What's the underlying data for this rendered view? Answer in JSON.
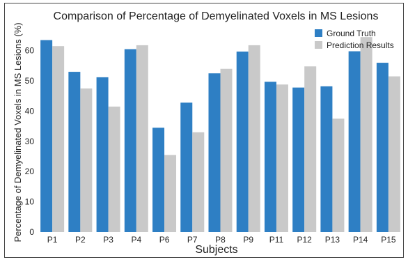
{
  "chart_data": {
    "type": "bar",
    "title": "Comparison of Percentage of Demyelinated Voxels in MS Lesions",
    "xlabel": "Subjects",
    "ylabel": "Percentage of Demyelinated Voxels in MS Lesions (%)",
    "categories": [
      "P1",
      "P2",
      "P3",
      "P4",
      "P6",
      "P7",
      "P8",
      "P9",
      "P11",
      "P12",
      "P13",
      "P14",
      "P15"
    ],
    "series": [
      {
        "name": "Ground Truth",
        "color": "#2e7fc4",
        "values": [
          63.5,
          53.0,
          51.2,
          60.5,
          34.5,
          42.8,
          52.5,
          59.7,
          49.7,
          47.8,
          48.2,
          59.8,
          56.0
        ]
      },
      {
        "name": "Prediction Results",
        "color": "#c9c9c9",
        "values": [
          61.5,
          47.5,
          41.5,
          61.8,
          25.5,
          33.0,
          54.0,
          61.8,
          48.8,
          54.8,
          37.5,
          64.5,
          51.5
        ]
      }
    ],
    "ylim": [
      0,
      68
    ],
    "yticks": [
      0,
      10,
      20,
      30,
      40,
      50,
      60
    ],
    "grid": false,
    "legend_position": "top-right"
  }
}
